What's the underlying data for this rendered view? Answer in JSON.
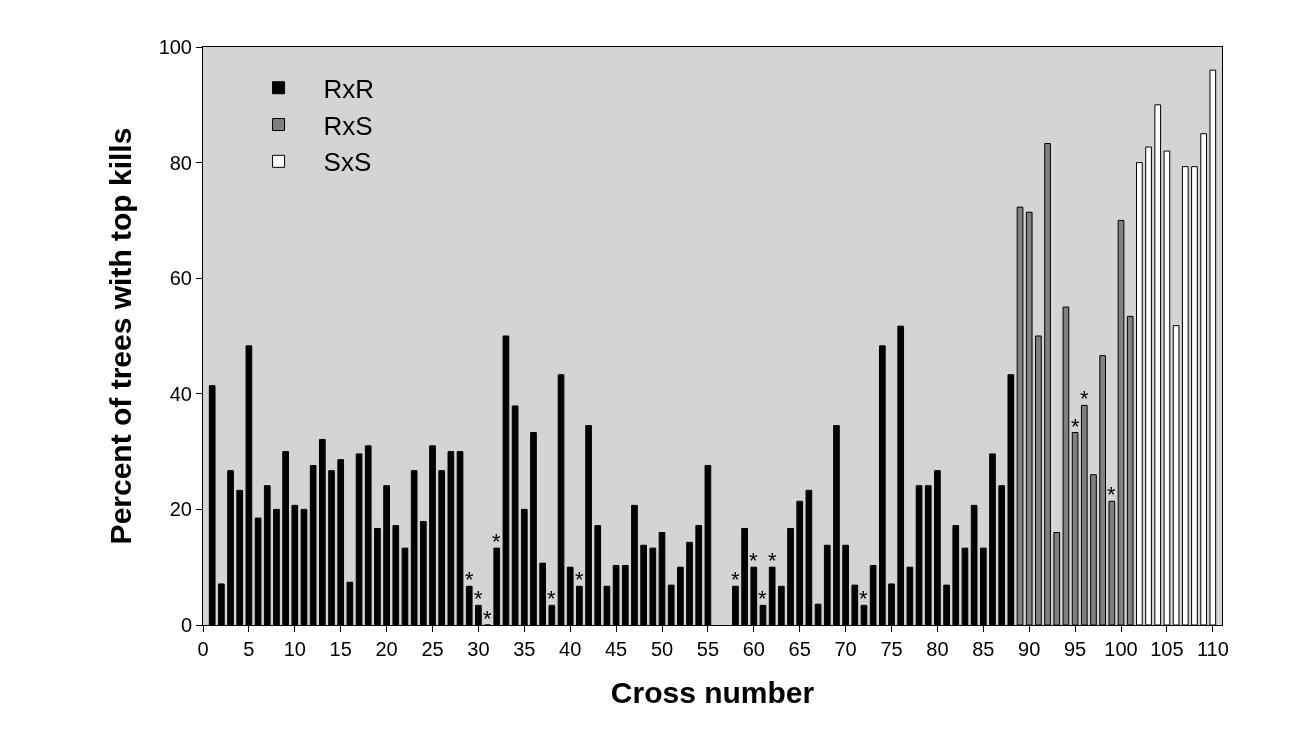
{
  "chart_data": {
    "type": "bar",
    "xlabel": "Cross number",
    "ylabel": "Percent of trees with top kills",
    "xlim": [
      0,
      111
    ],
    "xticks": [
      0,
      5,
      10,
      15,
      20,
      25,
      30,
      35,
      40,
      45,
      50,
      55,
      60,
      65,
      70,
      75,
      80,
      85,
      90,
      95,
      100,
      105,
      110
    ],
    "ylim": [
      0,
      100
    ],
    "yticks": [
      0,
      20,
      40,
      60,
      80,
      100
    ],
    "grid": false,
    "legend": "top left",
    "series": [
      {
        "name": "RxR",
        "color": "#000000",
        "x": [
          1,
          2,
          3,
          4,
          5,
          6,
          7,
          8,
          9,
          10,
          11,
          12,
          13,
          14,
          15,
          16,
          17,
          18,
          19,
          20,
          21,
          22,
          23,
          24,
          25,
          26,
          27,
          28,
          29,
          30,
          31,
          32,
          33,
          34,
          35,
          36,
          37,
          38,
          39,
          40,
          41,
          42,
          43,
          44,
          45,
          46,
          47,
          48,
          49,
          50,
          51,
          52,
          53,
          54,
          55,
          56,
          57,
          58,
          59,
          60,
          61,
          62,
          63,
          64,
          65,
          66,
          67,
          68,
          69,
          70,
          71,
          72,
          73,
          74,
          75,
          76,
          77,
          78,
          79,
          80,
          81,
          82,
          83,
          84,
          85,
          86,
          87,
          88
        ],
        "values": [
          41.4,
          7.1,
          26.7,
          23.3,
          48.3,
          18.5,
          24.1,
          20,
          30,
          20.7,
          20,
          27.6,
          32.1,
          26.7,
          28.6,
          7.4,
          29.6,
          31,
          16.7,
          24.1,
          17.2,
          13.3,
          26.7,
          17.9,
          31,
          26.7,
          30,
          30,
          6.7,
          3.4,
          0,
          13.3,
          50,
          37.9,
          20,
          33.3,
          10.7,
          3.4,
          43.3,
          10,
          6.7,
          34.5,
          17.2,
          6.7,
          10.3,
          10.3,
          20.7,
          13.8,
          13.3,
          16,
          6.9,
          10,
          14.3,
          17.2,
          27.6,
          null,
          null,
          6.7,
          16.7,
          10,
          3.4,
          10,
          6.7,
          16.7,
          21.4,
          23.3,
          3.6,
          13.8,
          34.5,
          13.8,
          6.9,
          3.4,
          10.3,
          48.3,
          7.1,
          51.7,
          10,
          24.1,
          24.1,
          26.7,
          6.9,
          17.2,
          13.3,
          20.7,
          13.3,
          29.6,
          24.1,
          43.3
        ]
      },
      {
        "name": "RxS",
        "color": "#808080",
        "x": [
          89,
          90,
          91,
          92,
          93,
          94,
          95,
          96,
          97,
          98,
          99,
          100,
          101
        ],
        "values": [
          72.3,
          71.4,
          50,
          83.3,
          16,
          55,
          33.3,
          38,
          26,
          46.6,
          21.4,
          70,
          53.4
        ]
      },
      {
        "name": "SxS",
        "color": "#ffffff",
        "x": [
          102,
          103,
          104,
          105,
          106,
          107,
          108,
          109,
          110
        ],
        "values": [
          80,
          82.7,
          90,
          82,
          51.8,
          79.3,
          79.3,
          85,
          96
        ]
      }
    ],
    "annotations": [
      {
        "text": "*",
        "x": 29,
        "y": 6.7
      },
      {
        "text": "*",
        "x": 30,
        "y": 3.4
      },
      {
        "text": "*",
        "x": 31,
        "y": 0
      },
      {
        "text": "*",
        "x": 32,
        "y": 13.3
      },
      {
        "text": "*",
        "x": 38,
        "y": 3.4
      },
      {
        "text": "*",
        "x": 41,
        "y": 6.7
      },
      {
        "text": "*",
        "x": 58,
        "y": 6.7
      },
      {
        "text": "*",
        "x": 60,
        "y": 10
      },
      {
        "text": "*",
        "x": 61,
        "y": 3.4
      },
      {
        "text": "*",
        "x": 62,
        "y": 10
      },
      {
        "text": "*",
        "x": 72,
        "y": 3.4
      },
      {
        "text": "*",
        "x": 95,
        "y": 33.3
      },
      {
        "text": "*",
        "x": 96,
        "y": 38
      },
      {
        "text": "*",
        "x": 99,
        "y": 21.4
      }
    ]
  }
}
